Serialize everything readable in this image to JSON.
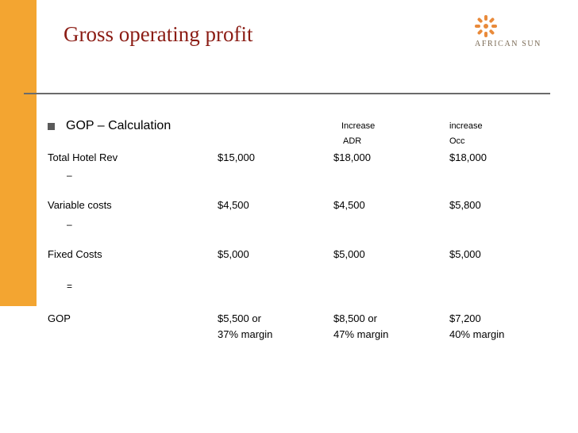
{
  "title": "Gross operating profit",
  "logo": {
    "text": "AFRICAN SUN"
  },
  "heading": "GOP – Calculation",
  "scenario_headers": [
    {
      "line1": "Increase",
      "line2": "ADR"
    },
    {
      "line1": "increase",
      "line2": "Occ"
    }
  ],
  "rows": [
    {
      "label": "Total Hotel Rev",
      "values": [
        "$15,000",
        "$18,000",
        "$18,000"
      ]
    },
    {
      "label": "Variable costs",
      "values": [
        "$4,500",
        "$4,500",
        "$5,800"
      ]
    },
    {
      "label": "Fixed Costs",
      "values": [
        "$5,000",
        "$5,000",
        "$5,000"
      ]
    },
    {
      "label": "GOP",
      "values": [
        "$5,500 or",
        "$8,500 or",
        "$7,200"
      ],
      "values2": [
        "37% margin",
        "47% margin",
        "40% margin"
      ]
    }
  ],
  "operators": [
    "–",
    "–",
    "="
  ],
  "colors": {
    "accent_bar": "#f3a531",
    "title": "#8b1c14",
    "rule": "#6b6b6b"
  }
}
